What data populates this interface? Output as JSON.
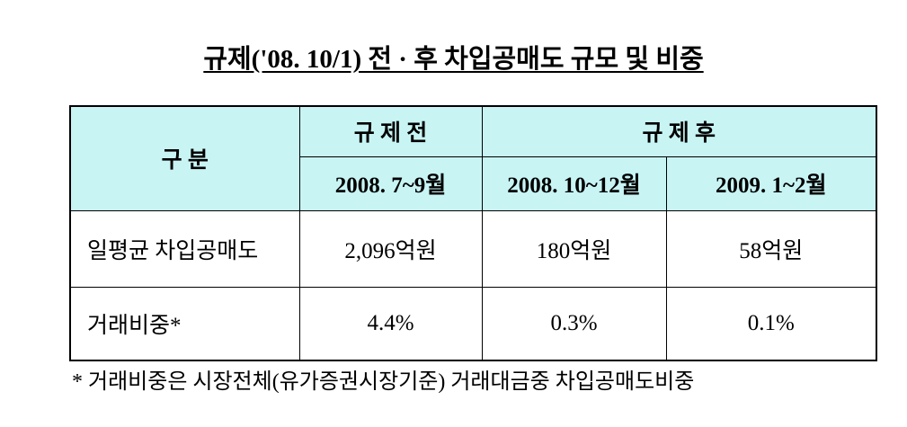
{
  "title": "규제('08. 10/1) 전 · 후 차입공매도 규모 및 비중",
  "table": {
    "header": {
      "group": "구 분",
      "before": "규 제 전",
      "after": "규 제 후",
      "periods": [
        "2008. 7~9월",
        "2008. 10~12월",
        "2009. 1~2월"
      ]
    },
    "rows": [
      [
        "일평균 차입공매도",
        "2,096억원",
        "180억원",
        "58억원"
      ],
      [
        "거래비중*",
        "4.4%",
        "0.3%",
        "0.1%"
      ]
    ]
  },
  "footnote": "* 거래비중은 시장전체(유가증권시장기준) 거래대금중 차입공매도비중"
}
